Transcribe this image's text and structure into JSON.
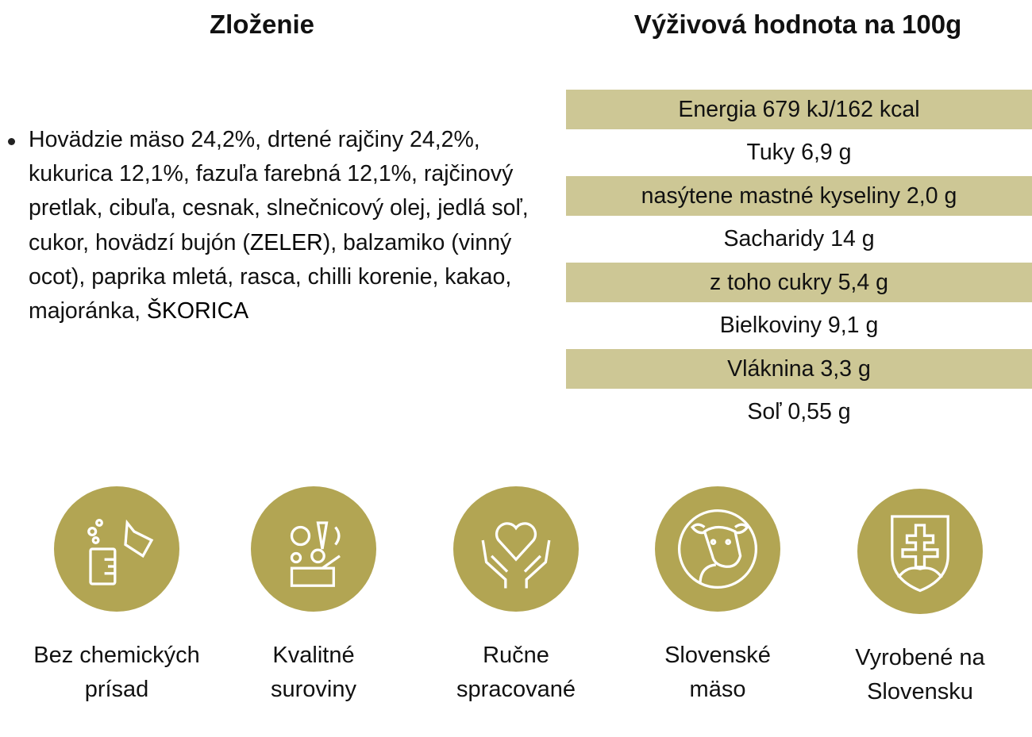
{
  "headings": {
    "ingredients": "Zloženie",
    "nutrition": "Výživová hodnota na 100g"
  },
  "ingredients": {
    "text_before_1": "Hovädzie mäso 24,2%, drtené rajčiny 24,2%, kukurica 12,1%, fazuľa farebná 12,1%, rajčinový pretlak, cibuľa, cesnak, slnečnicový olej, jedlá soľ, cukor, hovädzí bujón (",
    "allergen_1": "ZELER",
    "text_between": "), balzamiko (vinný ocot), paprika mletá, rasca, chilli korenie, kakao, majoránka, ",
    "allergen_2": "ŠKORICA"
  },
  "nutrition": [
    "Energia 679 kJ/162 kcal",
    "Tuky 6,9 g",
    "nasýtene mastné kyseliny 2,0 g",
    "Sacharidy 14 g",
    "z toho cukry 5,4 g",
    "Bielkoviny 9,1 g",
    "Vláknina 3,3 g",
    "Soľ 0,55 g"
  ],
  "colors": {
    "band": "#cdc795",
    "circle": "#b2a553"
  },
  "features": [
    {
      "icon": "lab-flask-icon",
      "line1": "Bez chemických",
      "line2": "prísad"
    },
    {
      "icon": "vegetables-icon",
      "line1": "Kvalitné",
      "line2": "suroviny"
    },
    {
      "icon": "heart-hands-icon",
      "line1": "Ručne",
      "line2": "spracované"
    },
    {
      "icon": "cow-icon",
      "line1": "Slovenské",
      "line2": "mäso"
    },
    {
      "icon": "slovak-coat-of-arms-icon",
      "line1": "Vyrobené na",
      "line2": "Slovensku"
    }
  ]
}
